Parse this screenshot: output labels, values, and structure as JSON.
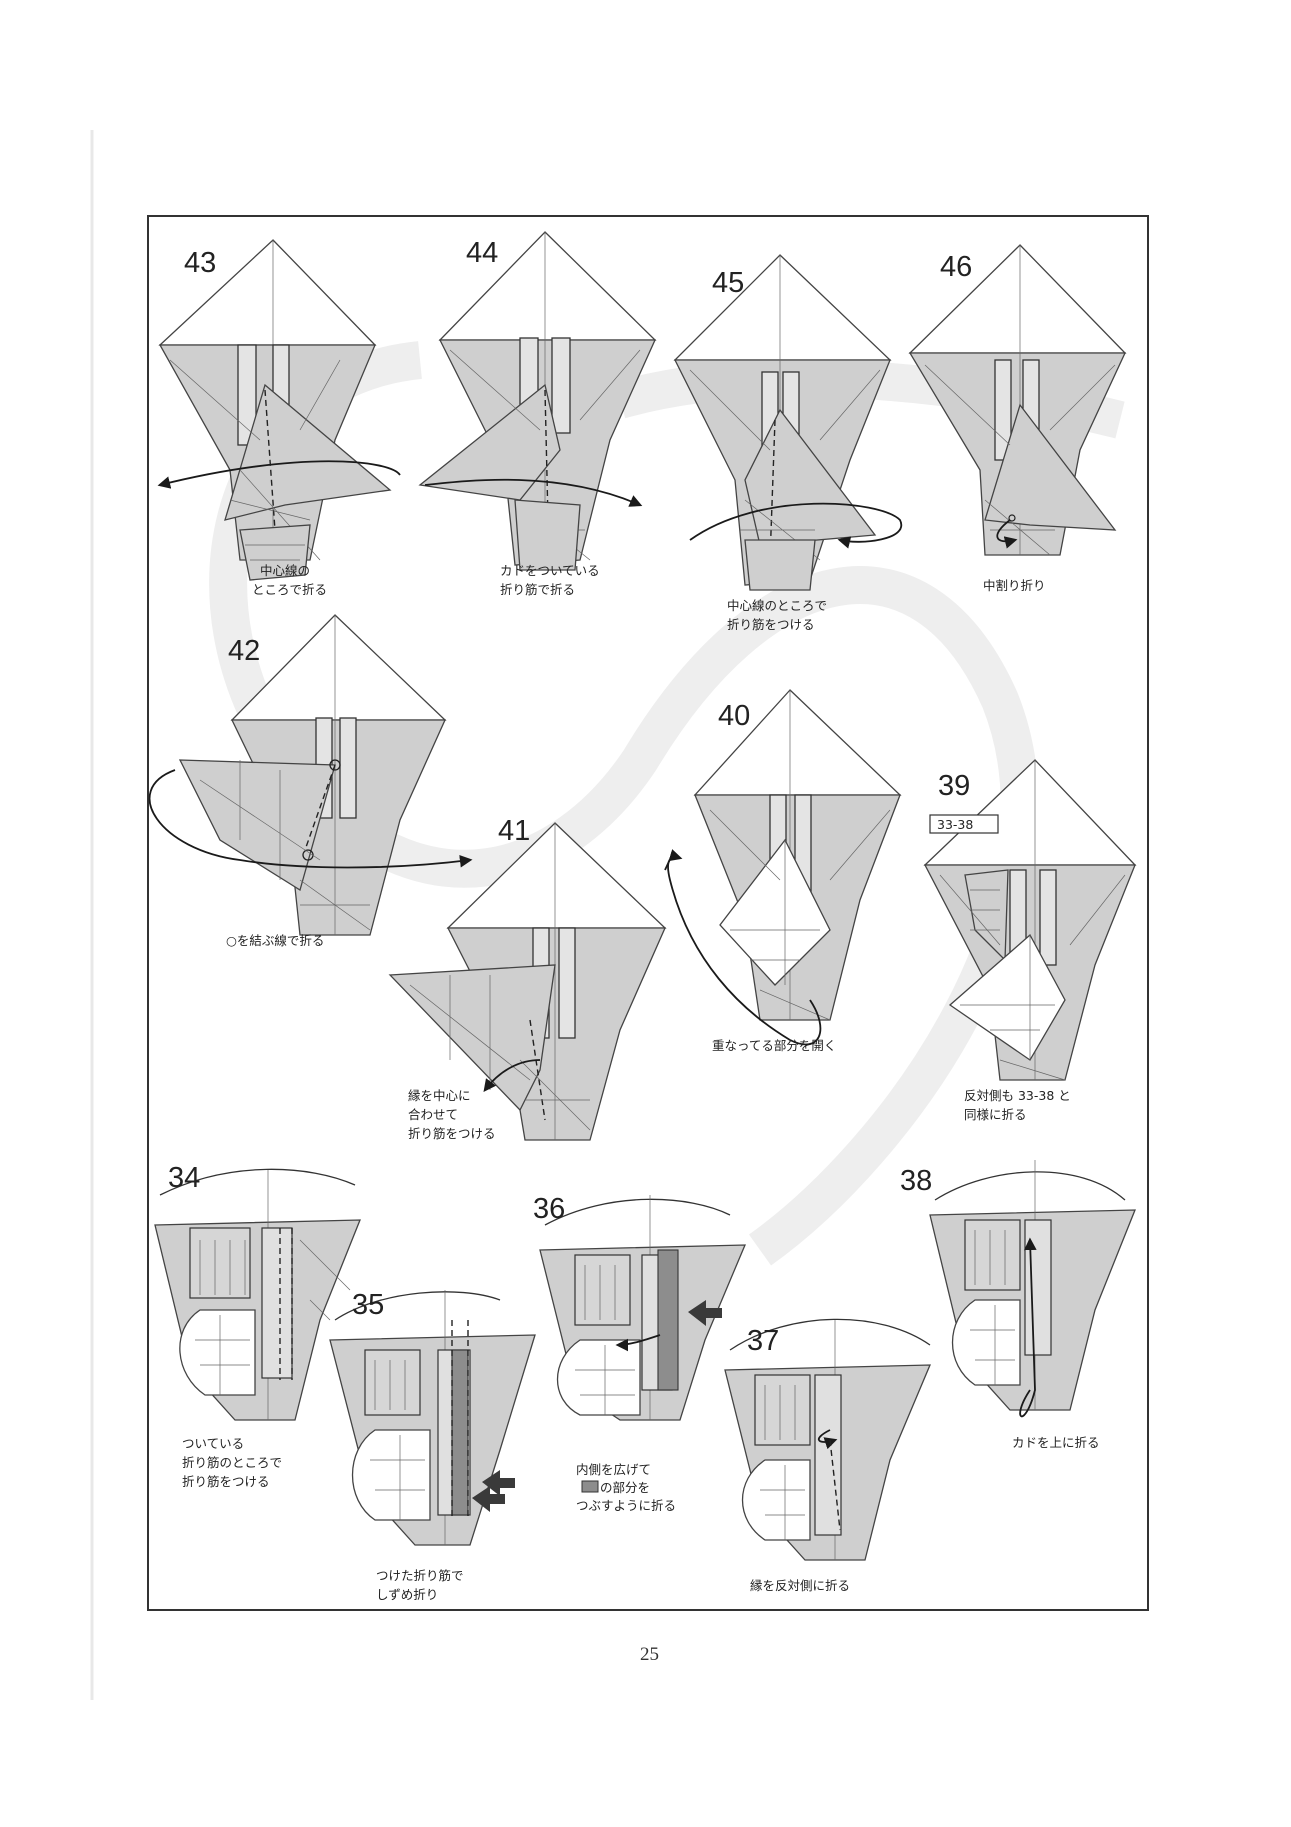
{
  "page_number": "25",
  "steps": [
    {
      "num": "43",
      "caption": [
        "中心線の",
        "ところで折る"
      ]
    },
    {
      "num": "44",
      "caption": [
        "カドをついている",
        "折り筋で折る"
      ]
    },
    {
      "num": "45",
      "caption": [
        "中心線のところで",
        "折り筋をつける"
      ]
    },
    {
      "num": "46",
      "caption": [
        "中割り折り"
      ]
    },
    {
      "num": "42",
      "caption": [
        "○を結ぶ線で折る"
      ]
    },
    {
      "num": "41",
      "caption": [
        "縁を中心に",
        "合わせて",
        "折り筋をつける"
      ]
    },
    {
      "num": "40",
      "caption": [
        "重なってる部分を開く"
      ]
    },
    {
      "num": "39",
      "tag": "33-38",
      "caption": [
        "反対側も 33-38 と",
        "同様に折る"
      ]
    },
    {
      "num": "34",
      "caption": [
        "ついている",
        "折り筋のところで",
        "折り筋をつける"
      ]
    },
    {
      "num": "35",
      "caption": [
        "つけた折り筋で",
        "しずめ折り"
      ]
    },
    {
      "num": "36",
      "caption": [
        "内側を広げて",
        "の部分を",
        "つぶすように折る"
      ]
    },
    {
      "num": "37",
      "caption": [
        "縁を反対側に折る"
      ]
    },
    {
      "num": "38",
      "caption": [
        "カドを上に折る"
      ]
    }
  ]
}
